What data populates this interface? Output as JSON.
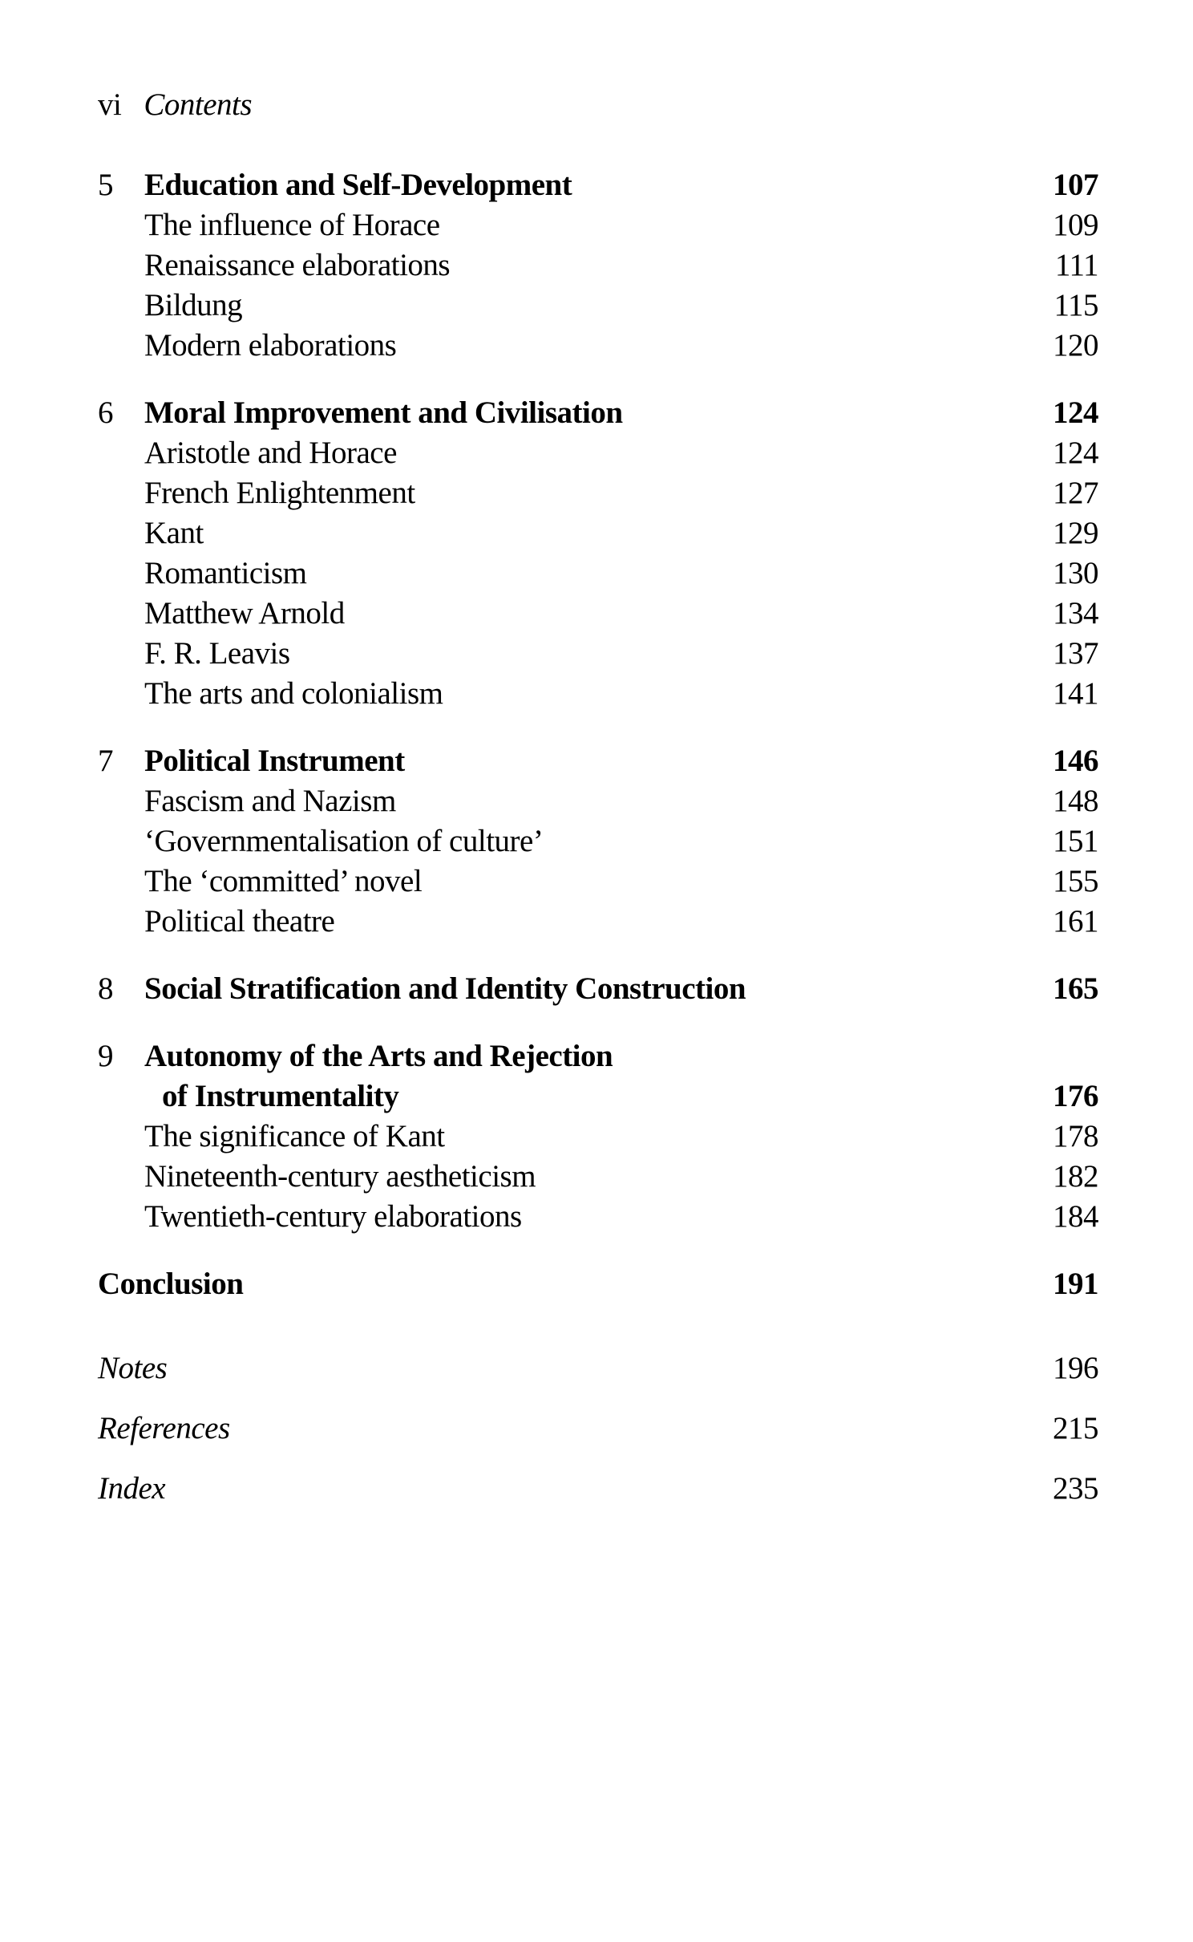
{
  "page": {
    "folio": "vi",
    "header_title": "Contents"
  },
  "toc": {
    "chapters": [
      {
        "number": "5",
        "heading_lines": [
          {
            "text": "Education and Self-Development",
            "page": "107"
          }
        ],
        "subsections": [
          {
            "title": "The influence of Horace",
            "page": "109"
          },
          {
            "title": "Renaissance elaborations",
            "page": "111"
          },
          {
            "title": "Bildung",
            "page": "115"
          },
          {
            "title": "Modern elaborations",
            "page": "120"
          }
        ]
      },
      {
        "number": "6",
        "heading_lines": [
          {
            "text": "Moral Improvement and Civilisation",
            "page": "124"
          }
        ],
        "subsections": [
          {
            "title": "Aristotle and Horace",
            "page": "124"
          },
          {
            "title": "French Enlightenment",
            "page": "127"
          },
          {
            "title": "Kant",
            "page": "129"
          },
          {
            "title": "Romanticism",
            "page": "130"
          },
          {
            "title": "Matthew Arnold",
            "page": "134"
          },
          {
            "title": "F. R. Leavis",
            "page": "137"
          },
          {
            "title": "The arts and colonialism",
            "page": "141"
          }
        ]
      },
      {
        "number": "7",
        "heading_lines": [
          {
            "text": "Political Instrument",
            "page": "146"
          }
        ],
        "subsections": [
          {
            "title": "‘Governmentalisation of culture’",
            "page": "151"
          },
          {
            "title": "The ‘committed’ novel",
            "page": "155"
          },
          {
            "title": "Political theatre",
            "page": "161"
          }
        ]
      },
      {
        "number": "8",
        "heading_lines": [
          {
            "text": "Social Stratification and Identity Construction",
            "page": "165"
          }
        ],
        "subsections": []
      },
      {
        "number": "9",
        "heading_lines": [
          {
            "text": "Autonomy of the Arts and Rejection",
            "page": ""
          },
          {
            "text": "of Instrumentality",
            "page": "176",
            "indent": true
          }
        ],
        "subsections": [
          {
            "title": "The significance of Kant",
            "page": "178"
          },
          {
            "title": "Nineteenth-century aestheticism",
            "page": "182"
          },
          {
            "title": "Twentieth-century elaborations",
            "page": "184"
          }
        ]
      }
    ],
    "chapter7_first_subsection": {
      "title": "Fascism and Nazism",
      "page": "148"
    },
    "conclusion": {
      "title": "Conclusion",
      "page": "191"
    },
    "back_matter": [
      {
        "title": "Notes",
        "page": "196"
      },
      {
        "title": "References",
        "page": "215"
      },
      {
        "title": "Index",
        "page": "235"
      }
    ]
  },
  "colors": {
    "text": "#000000",
    "background": "#ffffff"
  }
}
